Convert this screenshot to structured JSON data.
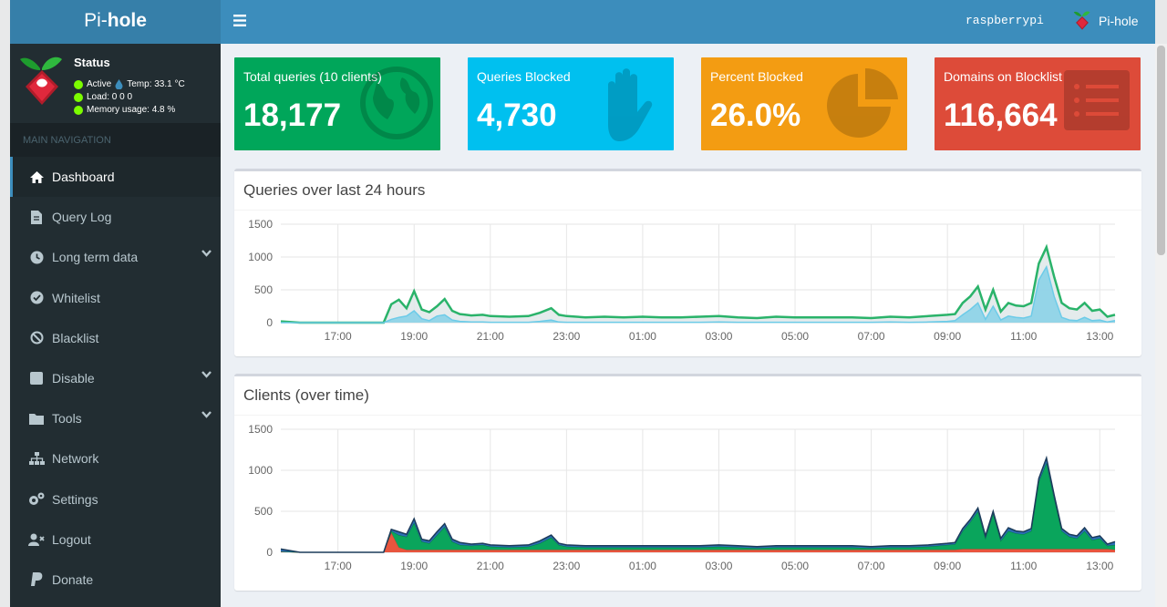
{
  "header": {
    "logo_light": "Pi-",
    "logo_bold": "hole",
    "hostname": "raspberrypi",
    "user_label": "Pi-hole"
  },
  "status": {
    "title": "Status",
    "active": "Active",
    "temp": "Temp: 33.1 °C",
    "load": "Load:  0  0  0",
    "memory": "Memory usage:  4.8 %"
  },
  "nav": {
    "header": "MAIN NAVIGATION",
    "items": [
      {
        "label": "Dashboard",
        "icon": "home-icon"
      },
      {
        "label": "Query Log",
        "icon": "file-icon"
      },
      {
        "label": "Long term data",
        "icon": "clock-icon"
      },
      {
        "label": "Whitelist",
        "icon": "check-circle-icon"
      },
      {
        "label": "Blacklist",
        "icon": "ban-icon"
      },
      {
        "label": "Disable",
        "icon": "stop-icon"
      },
      {
        "label": "Tools",
        "icon": "folder-icon"
      },
      {
        "label": "Network",
        "icon": "network-icon"
      },
      {
        "label": "Settings",
        "icon": "gears-icon"
      },
      {
        "label": "Logout",
        "icon": "user-times-icon"
      },
      {
        "label": "Donate",
        "icon": "paypal-icon"
      }
    ]
  },
  "stats": [
    {
      "label": "Total queries (10 clients)",
      "value": "18,177",
      "color": "#00a65a",
      "icon": "globe-icon"
    },
    {
      "label": "Queries Blocked",
      "value": "4,730",
      "color": "#00c0ef",
      "icon": "hand-icon"
    },
    {
      "label": "Percent Blocked",
      "value": "26.0%",
      "color": "#f39c12",
      "icon": "pie-chart-icon"
    },
    {
      "label": "Domains on Blocklist",
      "value": "116,664",
      "color": "#dd4b39",
      "icon": "list-icon"
    }
  ],
  "colors": {
    "accent": "#3c8dbc",
    "sidebar": "#222d32",
    "green": "#00a65a",
    "blue": "#00c0ef"
  },
  "chart_data": [
    {
      "type": "area",
      "title": "Queries over last 24 hours",
      "xlabel": "",
      "ylabel": "",
      "ylim": [
        0,
        1500
      ],
      "yticks": [
        0,
        500,
        1000,
        1500
      ],
      "x_ticks": [
        "17:00",
        "19:00",
        "21:00",
        "23:00",
        "01:00",
        "03:00",
        "05:00",
        "07:00",
        "09:00",
        "11:00",
        "13:00"
      ],
      "x": [
        15.5,
        16,
        16.5,
        17,
        17.5,
        18,
        18.2,
        18.4,
        18.6,
        18.8,
        19,
        19.2,
        19.4,
        19.6,
        19.8,
        20,
        20.2,
        20.5,
        20.8,
        21,
        21.5,
        22,
        22.3,
        22.6,
        22.8,
        23,
        23.5,
        24,
        24.5,
        25,
        25.5,
        26,
        26.5,
        27,
        27.5,
        28,
        28.5,
        29,
        29.5,
        30,
        30.5,
        31,
        31.5,
        32,
        32.5,
        33,
        33.2,
        33.4,
        33.6,
        33.8,
        34,
        34.2,
        34.4,
        34.6,
        34.8,
        35,
        35.2,
        35.4,
        35.6,
        35.8,
        36,
        36.2,
        36.4,
        36.6,
        36.8,
        37,
        37.2,
        37.4
      ],
      "series": [
        {
          "values": [
            20,
            0,
            0,
            0,
            0,
            0,
            0,
            280,
            350,
            220,
            480,
            200,
            160,
            250,
            360,
            180,
            130,
            110,
            120,
            100,
            90,
            100,
            150,
            220,
            120,
            100,
            80,
            90,
            80,
            90,
            80,
            80,
            90,
            100,
            80,
            70,
            90,
            80,
            80,
            80,
            80,
            70,
            90,
            80,
            100,
            120,
            130,
            300,
            400,
            550,
            200,
            500,
            170,
            300,
            260,
            250,
            300,
            900,
            1150,
            700,
            300,
            220,
            200,
            300,
            180,
            200,
            90,
            120
          ]
        },
        {
          "values": [
            0,
            0,
            0,
            0,
            0,
            0,
            0,
            50,
            80,
            100,
            180,
            60,
            30,
            100,
            120,
            40,
            20,
            10,
            10,
            5,
            5,
            5,
            20,
            40,
            10,
            5,
            5,
            5,
            5,
            5,
            5,
            5,
            5,
            10,
            5,
            5,
            5,
            5,
            5,
            5,
            5,
            5,
            10,
            5,
            10,
            20,
            30,
            120,
            200,
            300,
            50,
            250,
            40,
            100,
            80,
            70,
            100,
            650,
            850,
            400,
            80,
            40,
            30,
            80,
            30,
            40,
            10,
            30
          ]
        }
      ]
    },
    {
      "type": "area",
      "title": "Clients (over time)",
      "xlabel": "",
      "ylabel": "",
      "ylim": [
        0,
        1500
      ],
      "yticks": [
        0,
        500,
        1000,
        1500
      ],
      "x_ticks": [
        "17:00",
        "19:00",
        "21:00",
        "23:00",
        "01:00",
        "03:00",
        "05:00",
        "07:00",
        "09:00",
        "11:00",
        "13:00"
      ],
      "x": [
        15.5,
        16,
        16.5,
        17,
        17.5,
        18,
        18.2,
        18.4,
        18.6,
        18.8,
        19,
        19.2,
        19.4,
        19.6,
        19.8,
        20,
        20.2,
        20.5,
        20.8,
        21,
        21.5,
        22,
        22.3,
        22.6,
        22.8,
        23,
        23.5,
        24,
        24.5,
        25,
        25.5,
        26,
        26.5,
        27,
        27.5,
        28,
        28.5,
        29,
        29.5,
        30,
        30.5,
        31,
        31.5,
        32,
        32.5,
        33,
        33.2,
        33.4,
        33.6,
        33.8,
        34,
        34.2,
        34.4,
        34.6,
        34.8,
        35,
        35.2,
        35.4,
        35.6,
        35.8,
        36,
        36.2,
        36.4,
        36.6,
        36.8,
        37,
        37.2,
        37.4
      ],
      "series": [
        {
          "values": [
            10,
            0,
            0,
            0,
            0,
            0,
            0,
            240,
            60,
            30,
            30,
            30,
            30,
            30,
            30,
            30,
            30,
            30,
            30,
            30,
            30,
            30,
            30,
            30,
            30,
            30,
            30,
            30,
            30,
            30,
            30,
            30,
            30,
            30,
            30,
            30,
            30,
            30,
            30,
            30,
            30,
            30,
            30,
            30,
            30,
            30,
            30,
            40,
            40,
            40,
            40,
            40,
            40,
            40,
            40,
            40,
            40,
            40,
            40,
            40,
            40,
            40,
            40,
            40,
            40,
            40,
            40,
            30
          ]
        },
        {
          "values": [
            0,
            0,
            0,
            0,
            0,
            0,
            0,
            20,
            150,
            160,
            330,
            100,
            80,
            180,
            280,
            100,
            60,
            50,
            60,
            40,
            30,
            40,
            80,
            150,
            60,
            40,
            30,
            30,
            30,
            30,
            30,
            30,
            30,
            40,
            30,
            20,
            30,
            30,
            30,
            30,
            30,
            20,
            30,
            30,
            40,
            60,
            70,
            220,
            330,
            460,
            130,
            430,
            100,
            220,
            190,
            180,
            220,
            820,
            1050,
            620,
            220,
            150,
            130,
            220,
            110,
            130,
            40,
            60
          ]
        },
        {
          "values": [
            30,
            0,
            0,
            0,
            0,
            0,
            0,
            20,
            40,
            30,
            50,
            30,
            30,
            40,
            40,
            30,
            30,
            20,
            20,
            20,
            20,
            20,
            30,
            30,
            20,
            20,
            20,
            20,
            20,
            20,
            20,
            20,
            20,
            20,
            20,
            20,
            20,
            20,
            20,
            20,
            20,
            20,
            20,
            20,
            20,
            20,
            20,
            30,
            30,
            40,
            30,
            30,
            30,
            40,
            30,
            30,
            30,
            40,
            60,
            40,
            30,
            30,
            30,
            40,
            30,
            30,
            20,
            40
          ]
        }
      ]
    }
  ]
}
